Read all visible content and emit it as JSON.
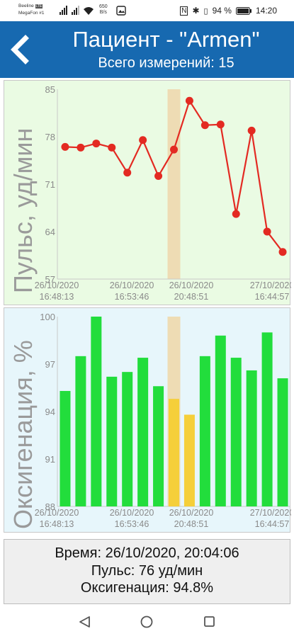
{
  "status": {
    "carrier1": "Beeline",
    "carrier1_badge": "LTE",
    "carrier2": "MegaFon #1",
    "speed_value": "650",
    "speed_unit": "B/s",
    "battery": "94 %",
    "time": "14:20"
  },
  "header": {
    "title": "Пациент - \"Armen\"",
    "subtitle": "Всего измерений: 15",
    "back_icon": "chevron-left-icon"
  },
  "info": {
    "time_line": "Время: 26/10/2020, 20:04:06",
    "pulse_line": "Пульс: 76 уд/мин",
    "ox_line": "Оксигенация: 94.8%"
  },
  "colors": {
    "header_bg": "#1769b0",
    "pulse_line": "#e32a22",
    "ox_bar": "#22dd3c",
    "ox_bar_selected": "#f5cf3a",
    "highlight": "#eedcb4"
  },
  "chart_data": [
    {
      "type": "line",
      "ylabel": "Пульс, уд/мин",
      "ylim": [
        57,
        85
      ],
      "yticks": [
        "57",
        "64",
        "71",
        "78",
        "85"
      ],
      "xticks": [
        {
          "date": "26/10/2020",
          "time": "16:48:13"
        },
        {
          "date": "26/10/2020",
          "time": "16:53:46"
        },
        {
          "date": "26/10/2020",
          "time": "20:48:51"
        },
        {
          "date": "27/10/2020",
          "time": "16:44:57"
        }
      ],
      "values": [
        76.5,
        76.4,
        77.0,
        76.4,
        72.7,
        77.5,
        72.2,
        76.1,
        83.3,
        79.7,
        79.8,
        66.6,
        78.9,
        64.0,
        61.0
      ],
      "selected_index": 7,
      "grid": false
    },
    {
      "type": "bar",
      "ylabel": "Оксигенация, %",
      "ylim": [
        88,
        100
      ],
      "yticks": [
        "88",
        "91",
        "94",
        "97",
        "100"
      ],
      "xticks": [
        {
          "date": "26/10/2020",
          "time": "16:48:13"
        },
        {
          "date": "26/10/2020",
          "time": "16:53:46"
        },
        {
          "date": "26/10/2020",
          "time": "20:48:51"
        },
        {
          "date": "27/10/2020",
          "time": "16:44:57"
        }
      ],
      "values": [
        95.3,
        97.5,
        100.0,
        96.2,
        96.5,
        97.4,
        95.6,
        94.8,
        93.8,
        97.5,
        98.8,
        97.4,
        96.6,
        99.0,
        96.1
      ],
      "highlight_indices": [
        7,
        8
      ],
      "selected_index": 7,
      "grid": false
    }
  ]
}
